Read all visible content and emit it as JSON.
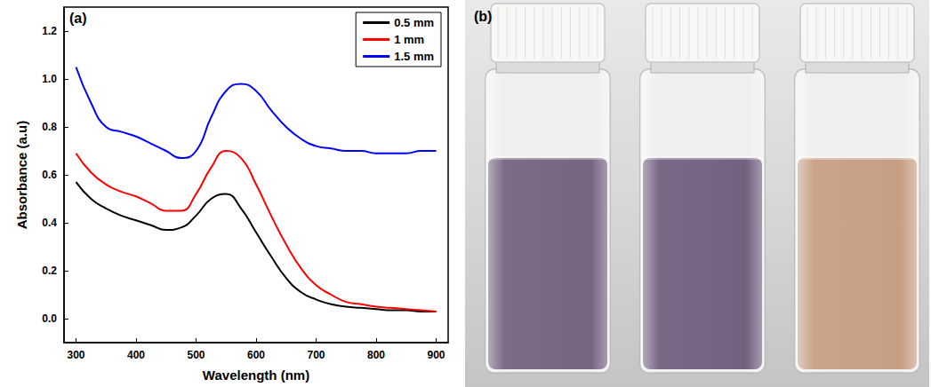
{
  "chart_data": {
    "type": "line",
    "panel_label": "(a)",
    "x_label": "Wavelength (nm)",
    "y_label": "Absorbance (a.u)",
    "x": [
      300,
      325,
      350,
      375,
      400,
      425,
      450,
      475,
      500,
      525,
      550,
      575,
      600,
      625,
      650,
      675,
      700,
      725,
      750,
      775,
      800,
      825,
      850,
      875,
      900
    ],
    "series": [
      {
        "name": "0.5 mm",
        "color": "#000000",
        "values": [
          0.57,
          0.5,
          0.46,
          0.43,
          0.41,
          0.39,
          0.37,
          0.38,
          0.43,
          0.5,
          0.52,
          0.46,
          0.36,
          0.26,
          0.17,
          0.11,
          0.08,
          0.06,
          0.05,
          0.045,
          0.04,
          0.035,
          0.035,
          0.03,
          0.03
        ]
      },
      {
        "name": "1 mm",
        "color": "#ff0000",
        "values": [
          0.69,
          0.61,
          0.56,
          0.53,
          0.51,
          0.48,
          0.45,
          0.45,
          0.52,
          0.63,
          0.7,
          0.67,
          0.56,
          0.43,
          0.31,
          0.21,
          0.14,
          0.1,
          0.07,
          0.06,
          0.05,
          0.045,
          0.04,
          0.035,
          0.03
        ]
      },
      {
        "name": "1.5 mm",
        "color": "#0000ff",
        "values": [
          1.05,
          0.9,
          0.8,
          0.78,
          0.76,
          0.73,
          0.7,
          0.67,
          0.7,
          0.84,
          0.95,
          0.98,
          0.95,
          0.87,
          0.8,
          0.75,
          0.72,
          0.71,
          0.7,
          0.7,
          0.69,
          0.69,
          0.69,
          0.7,
          0.7
        ]
      }
    ],
    "xlim": [
      280,
      920
    ],
    "xticks": [
      300,
      400,
      500,
      600,
      700,
      800,
      900
    ],
    "ylim": [
      -0.1,
      1.3
    ],
    "yticks": [
      {
        "value": 0,
        "label": "0.0"
      },
      {
        "value": 0.2,
        "label": "0.2"
      },
      {
        "value": 0.4,
        "label": "0.4"
      },
      {
        "value": 0.6,
        "label": "0.6"
      },
      {
        "value": 0.8,
        "label": "0.8"
      },
      {
        "value": 1.0,
        "label": "1.0"
      },
      {
        "value": 1.2,
        "label": "1.2"
      }
    ],
    "legend": "top-right",
    "grid": false
  },
  "photo": {
    "panel_label": "(b)",
    "colors": [
      "#6f5c7a",
      "#6b5979",
      "#c39a7e"
    ]
  }
}
